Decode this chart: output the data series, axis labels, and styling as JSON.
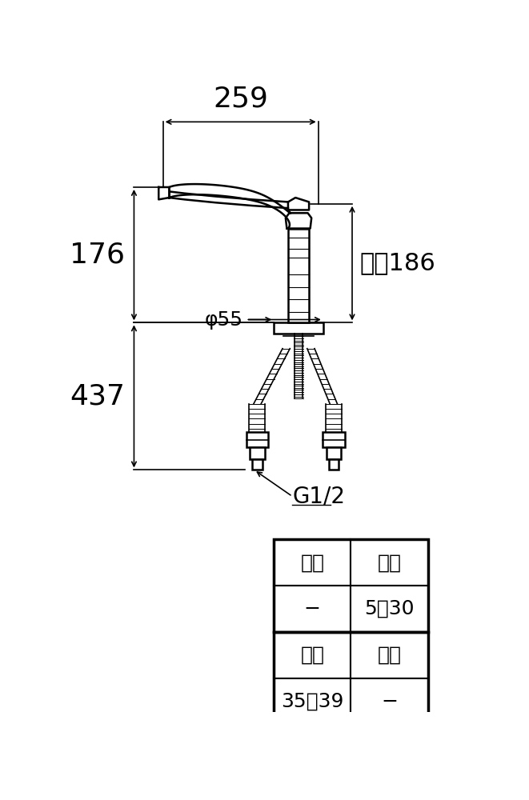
{
  "bg_color": "#ffffff",
  "line_color": "#000000",
  "dim_259": "259",
  "dim_176": "176",
  "dim_437": "437",
  "dim_186": "最大186",
  "dim_55": "φ55",
  "label_G12": "G1/2",
  "table_cells": [
    [
      "足径",
      "厚み"
    ],
    [
      "−",
      "5～30"
    ],
    [
      "穴径",
      "六觓"
    ],
    [
      "35～39",
      "−"
    ]
  ],
  "font_size_big_dim": 26,
  "font_size_mid_dim": 22,
  "font_size_small": 16,
  "font_size_table": 18,
  "font_size_g12": 20
}
